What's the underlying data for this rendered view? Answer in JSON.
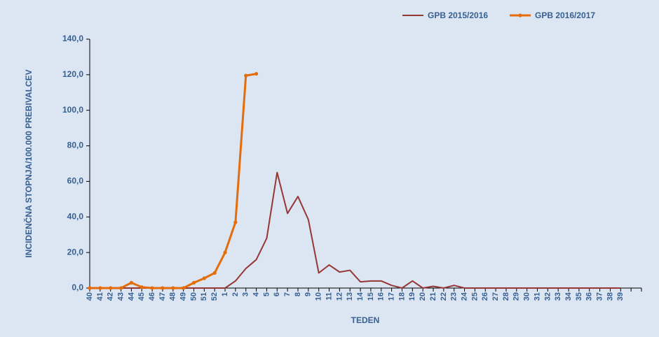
{
  "chart_data": {
    "type": "line",
    "y_label": "INCIDENČNA STOPNJA/100.000 PREBIVALCEV",
    "x_label": "TEDEN",
    "categories": [
      "40",
      "41",
      "42",
      "43",
      "44",
      "45",
      "46",
      "47",
      "48",
      "49",
      "50",
      "51",
      "52",
      "1",
      "2",
      "3",
      "4",
      "5",
      "6",
      "7",
      "8",
      "9",
      "10",
      "11",
      "12",
      "13",
      "14",
      "15",
      "16",
      "17",
      "18",
      "19",
      "20",
      "21",
      "22",
      "23",
      "24",
      "25",
      "26",
      "27",
      "28",
      "29",
      "30",
      "31",
      "32",
      "33",
      "34",
      "35",
      "36",
      "37",
      "38",
      "39",
      null,
      null
    ],
    "series": [
      {
        "name": "GPB 2015/2016",
        "color": "#953735",
        "markers": false,
        "values": [
          0,
          0,
          0,
          0,
          0,
          0,
          0,
          0,
          0,
          0,
          0,
          0,
          0,
          0,
          4,
          11,
          16,
          28,
          65,
          42,
          51.5,
          38.5,
          8.5,
          13,
          9,
          10,
          3.5,
          4,
          4,
          1.5,
          0,
          4,
          0,
          1,
          0,
          1.5,
          0,
          0,
          0,
          0,
          0,
          0,
          0,
          0,
          0,
          0,
          0,
          0,
          0,
          0,
          0,
          0,
          null,
          null
        ]
      },
      {
        "name": "GPB 2016/2017",
        "color": "#e46c0a",
        "markers": true,
        "values": [
          0,
          0,
          0,
          0,
          3,
          0.5,
          0,
          0,
          0,
          0,
          3,
          5.5,
          8.5,
          20,
          37,
          119.5,
          120.5,
          null,
          null,
          null,
          null,
          null,
          null,
          null,
          null,
          null,
          null,
          null,
          null,
          null,
          null,
          null,
          null,
          null,
          null,
          null,
          null,
          null,
          null,
          null,
          null,
          null,
          null,
          null,
          null,
          null,
          null,
          null,
          null,
          null,
          null,
          null,
          null,
          null
        ]
      }
    ],
    "ylim": [
      0,
      140
    ],
    "yticks": [
      {
        "value": 0,
        "label": "0,0"
      },
      {
        "value": 20,
        "label": "20,0"
      },
      {
        "value": 40,
        "label": "40,0"
      },
      {
        "value": 60,
        "label": "60,0"
      },
      {
        "value": 80,
        "label": "80,0"
      },
      {
        "value": 100,
        "label": "100,0"
      },
      {
        "value": 120,
        "label": "120,0"
      },
      {
        "value": 140,
        "label": "140,0"
      }
    ],
    "grid": false,
    "legend": "top-right"
  }
}
